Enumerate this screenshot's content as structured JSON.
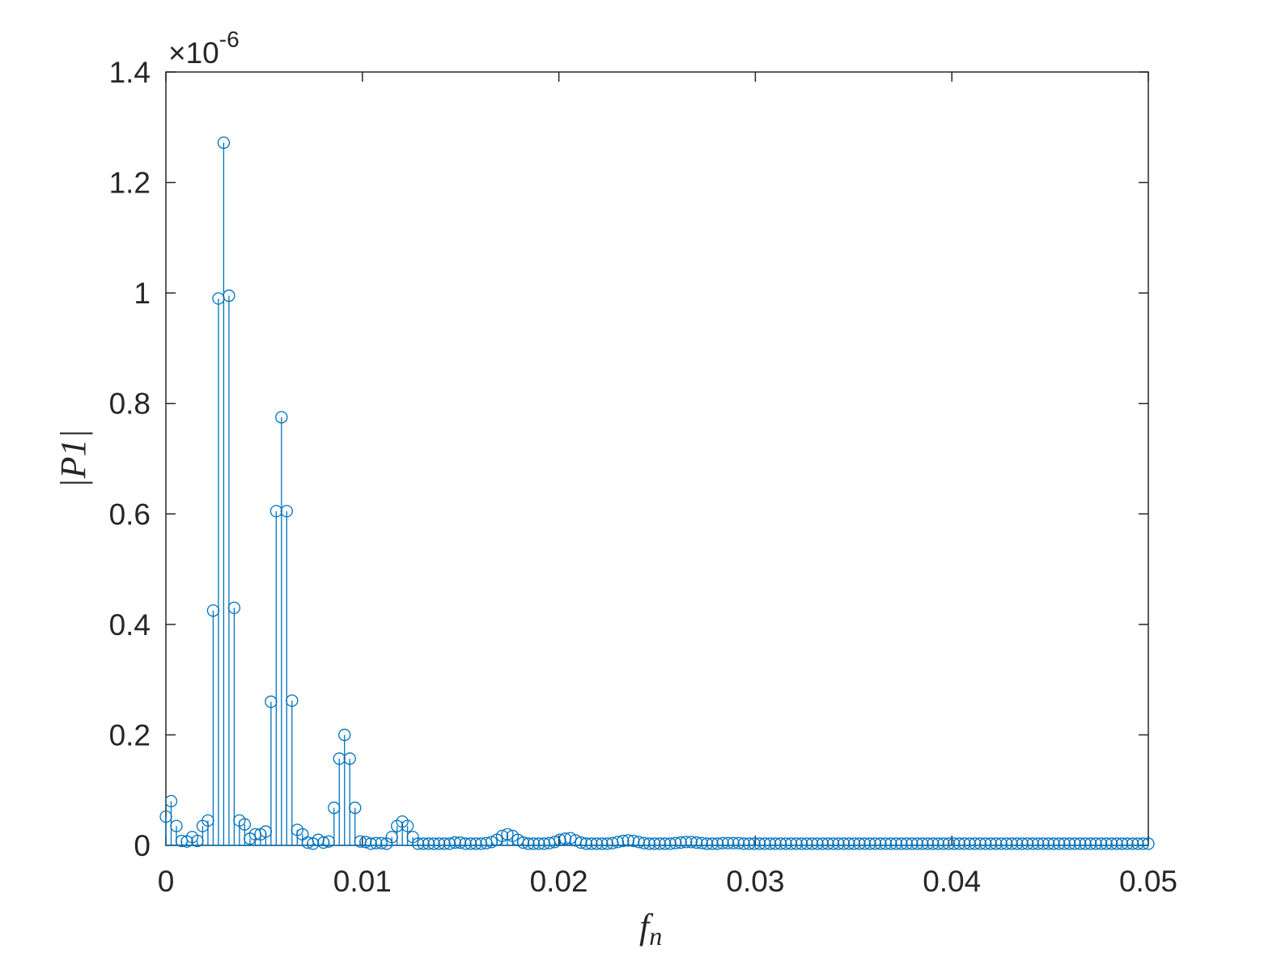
{
  "chart_data": {
    "type": "stem",
    "y_multiplier": "×10",
    "y_exponent": "-6",
    "y_label": "|P1|",
    "x_label": "f",
    "x_label_subscript": "n",
    "xlim": [
      0,
      0.05
    ],
    "xticks": [
      0,
      0.01,
      0.02,
      0.03,
      0.04,
      0.05
    ],
    "ylim": [
      0,
      1.4
    ],
    "yticks": [
      0,
      0.2,
      0.4,
      0.6,
      0.8,
      1,
      1.2,
      1.4
    ],
    "color": "#0072BD",
    "x": [
      0,
      0.000267,
      0.000535,
      0.000802,
      0.00107,
      0.001337,
      0.001604,
      0.001872,
      0.002139,
      0.002406,
      0.002674,
      0.002941,
      0.003209,
      0.003476,
      0.003743,
      0.004011,
      0.004278,
      0.004545,
      0.004813,
      0.00508,
      0.005348,
      0.005615,
      0.005882,
      0.00615,
      0.006417,
      0.006684,
      0.006952,
      0.007219,
      0.007487,
      0.007754,
      0.008021,
      0.008289,
      0.008556,
      0.008824,
      0.009091,
      0.009358,
      0.009626,
      0.009893,
      0.01016,
      0.010428,
      0.010695,
      0.010963,
      0.01123,
      0.011497,
      0.011765,
      0.012032,
      0.012299,
      0.012567,
      0.012834,
      0.013102,
      0.013369,
      0.013636,
      0.013904,
      0.014171,
      0.014439,
      0.014706,
      0.014973,
      0.015241,
      0.015508,
      0.015775,
      0.016043,
      0.01631,
      0.016578,
      0.016845,
      0.017112,
      0.01738,
      0.017647,
      0.017914,
      0.018182,
      0.018449,
      0.018717,
      0.018984,
      0.019251,
      0.019519,
      0.019786,
      0.020053,
      0.020321,
      0.020588,
      0.020856,
      0.021123,
      0.02139,
      0.021658,
      0.021925,
      0.022193,
      0.02246,
      0.022727,
      0.022995,
      0.023262,
      0.023529,
      0.023797,
      0.024064,
      0.024332,
      0.024599,
      0.024866,
      0.025134,
      0.025401,
      0.025668,
      0.025936,
      0.026203,
      0.026471,
      0.026738,
      0.027005,
      0.027273,
      0.02754,
      0.027807,
      0.028075,
      0.028342,
      0.02861,
      0.028877,
      0.029144,
      0.029412,
      0.029679,
      0.029947,
      0.030214,
      0.030481,
      0.030749,
      0.031016,
      0.031283,
      0.031551,
      0.031818,
      0.032086,
      0.032353,
      0.03262,
      0.032888,
      0.033155,
      0.033422,
      0.03369,
      0.033957,
      0.034225,
      0.034492,
      0.034759,
      0.035027,
      0.035294,
      0.035561,
      0.035829,
      0.036096,
      0.036364,
      0.036631,
      0.036898,
      0.037166,
      0.037433,
      0.0377,
      0.037968,
      0.038235,
      0.038503,
      0.03877,
      0.039037,
      0.039305,
      0.039572,
      0.03984,
      0.040107,
      0.040374,
      0.040642,
      0.040909,
      0.041176,
      0.041444,
      0.041711,
      0.041979,
      0.042246,
      0.042513,
      0.042781,
      0.043048,
      0.043316,
      0.043583,
      0.04385,
      0.044118,
      0.044385,
      0.044652,
      0.04492,
      0.045187,
      0.045455,
      0.045722,
      0.045989,
      0.046257,
      0.046524,
      0.046791,
      0.047059,
      0.047326,
      0.047594,
      0.047861,
      0.048128,
      0.048396,
      0.048663,
      0.048931,
      0.049198,
      0.049465,
      0.049733,
      0.05
    ],
    "values": [
      0.052,
      0.08,
      0.035,
      0.008,
      0.007,
      0.015,
      0.008,
      0.035,
      0.045,
      0.425,
      0.99,
      1.272,
      0.995,
      0.43,
      0.045,
      0.038,
      0.012,
      0.02,
      0.02,
      0.025,
      0.26,
      0.605,
      0.775,
      0.605,
      0.262,
      0.028,
      0.02,
      0.005,
      0.003,
      0.01,
      0.005,
      0.007,
      0.068,
      0.157,
      0.2,
      0.157,
      0.068,
      0.007,
      0.006,
      0.003,
      0.004,
      0.004,
      0.003,
      0.015,
      0.035,
      0.043,
      0.035,
      0.015,
      0.003,
      0.003,
      0.003,
      0.003,
      0.003,
      0.003,
      0.003,
      0.005,
      0.005,
      0.003,
      0.003,
      0.003,
      0.003,
      0.004,
      0.006,
      0.01,
      0.017,
      0.02,
      0.017,
      0.01,
      0.005,
      0.003,
      0.003,
      0.003,
      0.003,
      0.004,
      0.006,
      0.01,
      0.012,
      0.013,
      0.009,
      0.005,
      0.003,
      0.003,
      0.003,
      0.003,
      0.003,
      0.004,
      0.006,
      0.008,
      0.009,
      0.008,
      0.006,
      0.004,
      0.003,
      0.003,
      0.003,
      0.003,
      0.003,
      0.004,
      0.005,
      0.006,
      0.006,
      0.005,
      0.004,
      0.003,
      0.003,
      0.003,
      0.004,
      0.004,
      0.004,
      0.004,
      0.003,
      0.003,
      0.003,
      0.003,
      0.003,
      0.003,
      0.003,
      0.003,
      0.003,
      0.003,
      0.003,
      0.003,
      0.003,
      0.003,
      0.003,
      0.003,
      0.003,
      0.003,
      0.003,
      0.003,
      0.003,
      0.003,
      0.003,
      0.003,
      0.003,
      0.003,
      0.003,
      0.003,
      0.003,
      0.003,
      0.003,
      0.003,
      0.003,
      0.003,
      0.003,
      0.003,
      0.003,
      0.003,
      0.003,
      0.003,
      0.003,
      0.003,
      0.003,
      0.003,
      0.003,
      0.003,
      0.003,
      0.003,
      0.003,
      0.003,
      0.003,
      0.003,
      0.003,
      0.003,
      0.003,
      0.003,
      0.003,
      0.003,
      0.003,
      0.003,
      0.003,
      0.003,
      0.003,
      0.003,
      0.003,
      0.003,
      0.003,
      0.003,
      0.003,
      0.003,
      0.003,
      0.003,
      0.003,
      0.003,
      0.003,
      0.003,
      0.003,
      0.003
    ]
  }
}
